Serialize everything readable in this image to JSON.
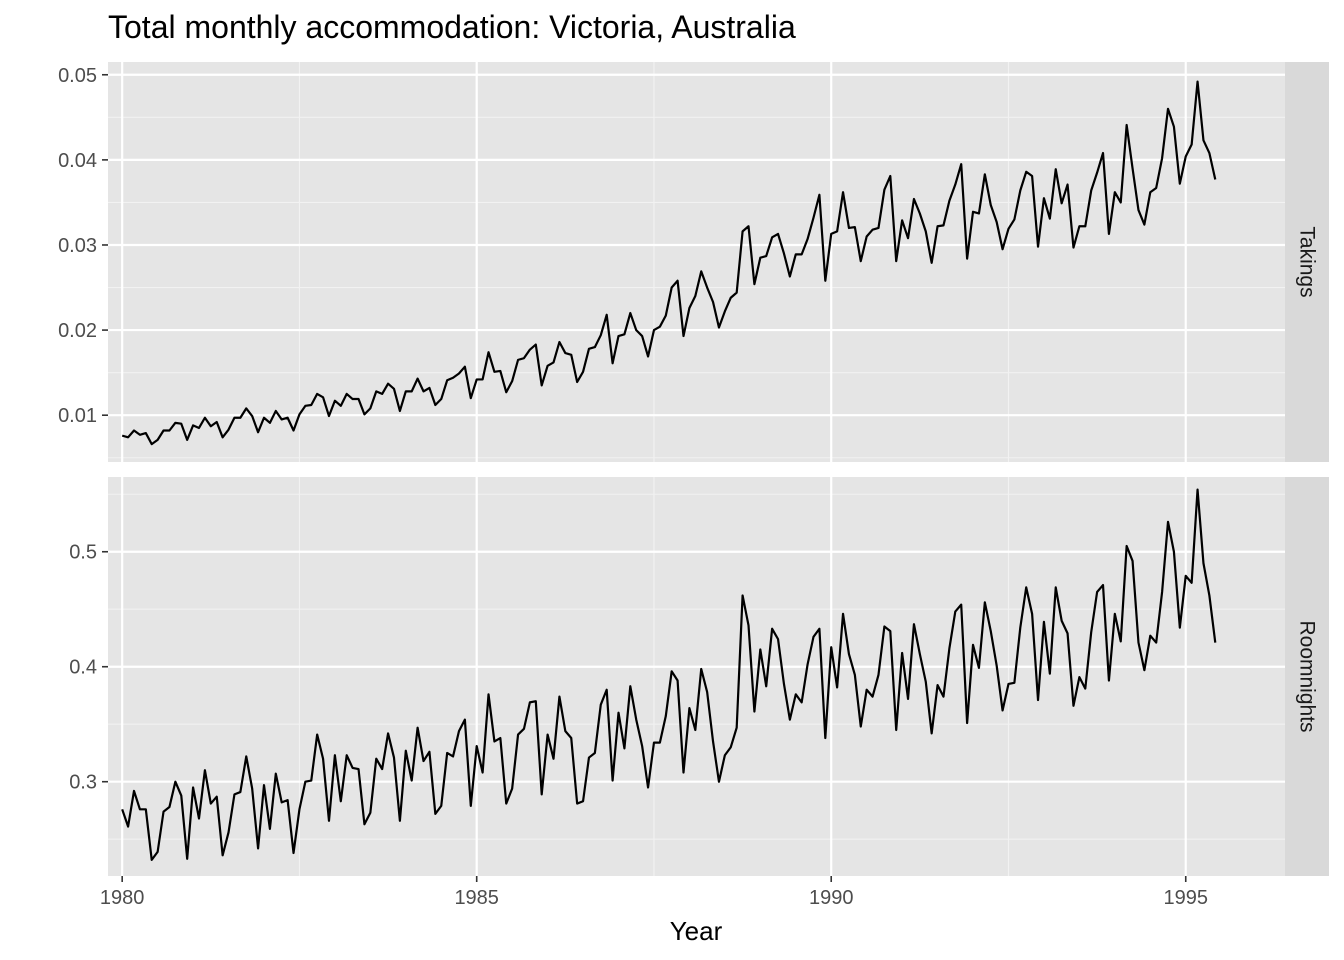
{
  "chart_data": {
    "type": "line",
    "title": "Total monthly accommodation: Victoria, Australia",
    "xlabel": "Year",
    "ylabel": "",
    "x_start": "1980-01",
    "x_frequency": "monthly",
    "x_ticks": [
      1980,
      1985,
      1990,
      1995
    ],
    "xlim": [
      1979.8,
      1996.4
    ],
    "grid": true,
    "legend": "none",
    "line_color": "#000000",
    "panel_background": "#e5e5e5",
    "strip_background": "#d9d9d9",
    "panels": [
      {
        "strip_label": "Takings",
        "ylim": [
          0.0045,
          0.0515
        ],
        "y_ticks": [
          0.01,
          0.02,
          0.03,
          0.04,
          0.05
        ],
        "y_tick_labels": [
          "0.01",
          "0.02",
          "0.03",
          "0.04",
          "0.05"
        ],
        "values": [
          0.0076,
          0.0074,
          0.0082,
          0.0077,
          0.0079,
          0.0066,
          0.0071,
          0.0082,
          0.0082,
          0.0091,
          0.009,
          0.0071,
          0.0088,
          0.0085,
          0.0097,
          0.0087,
          0.0092,
          0.0074,
          0.0083,
          0.0097,
          0.0097,
          0.0108,
          0.0099,
          0.008,
          0.0097,
          0.0091,
          0.0105,
          0.0095,
          0.0097,
          0.0082,
          0.0101,
          0.0111,
          0.0112,
          0.0125,
          0.0121,
          0.0099,
          0.0117,
          0.0111,
          0.0125,
          0.0119,
          0.0119,
          0.0101,
          0.0108,
          0.0128,
          0.0125,
          0.0137,
          0.0131,
          0.0105,
          0.0128,
          0.0128,
          0.0143,
          0.0128,
          0.0132,
          0.0112,
          0.0119,
          0.0141,
          0.0144,
          0.0149,
          0.0157,
          0.012,
          0.0142,
          0.0142,
          0.0174,
          0.0151,
          0.0152,
          0.0127,
          0.014,
          0.0165,
          0.0167,
          0.0177,
          0.0183,
          0.0135,
          0.0158,
          0.0162,
          0.0186,
          0.0173,
          0.0171,
          0.0139,
          0.0151,
          0.0178,
          0.018,
          0.0194,
          0.0218,
          0.0161,
          0.0193,
          0.0195,
          0.022,
          0.02,
          0.0193,
          0.0169,
          0.02,
          0.0204,
          0.0217,
          0.025,
          0.0258,
          0.0193,
          0.0226,
          0.024,
          0.0269,
          0.025,
          0.0233,
          0.0203,
          0.0222,
          0.0238,
          0.0244,
          0.0316,
          0.0322,
          0.0254,
          0.0285,
          0.0287,
          0.0309,
          0.0313,
          0.029,
          0.0263,
          0.0289,
          0.0289,
          0.0307,
          0.0332,
          0.0359,
          0.0258,
          0.0313,
          0.0316,
          0.0362,
          0.032,
          0.0321,
          0.0281,
          0.031,
          0.0318,
          0.032,
          0.0365,
          0.0381,
          0.0281,
          0.0329,
          0.0308,
          0.0354,
          0.0337,
          0.0316,
          0.0279,
          0.0322,
          0.0323,
          0.0352,
          0.0371,
          0.0395,
          0.0284,
          0.0339,
          0.0337,
          0.0383,
          0.0347,
          0.0327,
          0.0295,
          0.0319,
          0.033,
          0.0364,
          0.0386,
          0.0381,
          0.0298,
          0.0355,
          0.0331,
          0.0389,
          0.0349,
          0.0371,
          0.0297,
          0.0322,
          0.0322,
          0.0364,
          0.0385,
          0.0408,
          0.0313,
          0.0362,
          0.035,
          0.0441,
          0.039,
          0.0341,
          0.0324,
          0.0362,
          0.0367,
          0.0402,
          0.046,
          0.0439,
          0.0372,
          0.0404,
          0.0418,
          0.0492,
          0.0423,
          0.0408,
          0.0377
        ]
      },
      {
        "strip_label": "Roomnights",
        "ylim": [
          0.218,
          0.565
        ],
        "y_ticks": [
          0.3,
          0.4,
          0.5
        ],
        "y_tick_labels": [
          "0.3",
          "0.4",
          "0.5"
        ],
        "values": [
          0.276,
          0.261,
          0.292,
          0.276,
          0.276,
          0.232,
          0.239,
          0.274,
          0.278,
          0.3,
          0.288,
          0.233,
          0.295,
          0.268,
          0.31,
          0.281,
          0.287,
          0.236,
          0.256,
          0.289,
          0.291,
          0.322,
          0.294,
          0.242,
          0.297,
          0.259,
          0.307,
          0.282,
          0.284,
          0.238,
          0.276,
          0.3,
          0.301,
          0.341,
          0.32,
          0.266,
          0.323,
          0.283,
          0.323,
          0.312,
          0.311,
          0.263,
          0.273,
          0.32,
          0.311,
          0.342,
          0.321,
          0.266,
          0.327,
          0.301,
          0.347,
          0.318,
          0.326,
          0.272,
          0.279,
          0.325,
          0.322,
          0.344,
          0.354,
          0.279,
          0.331,
          0.308,
          0.376,
          0.335,
          0.338,
          0.281,
          0.294,
          0.341,
          0.346,
          0.369,
          0.37,
          0.289,
          0.341,
          0.32,
          0.374,
          0.344,
          0.338,
          0.281,
          0.283,
          0.321,
          0.325,
          0.367,
          0.38,
          0.301,
          0.36,
          0.329,
          0.383,
          0.354,
          0.331,
          0.295,
          0.334,
          0.334,
          0.357,
          0.396,
          0.388,
          0.308,
          0.364,
          0.345,
          0.398,
          0.378,
          0.335,
          0.3,
          0.323,
          0.33,
          0.347,
          0.462,
          0.436,
          0.361,
          0.415,
          0.383,
          0.433,
          0.424,
          0.385,
          0.354,
          0.376,
          0.369,
          0.402,
          0.426,
          0.433,
          0.338,
          0.417,
          0.382,
          0.446,
          0.411,
          0.393,
          0.348,
          0.38,
          0.374,
          0.393,
          0.435,
          0.431,
          0.345,
          0.412,
          0.372,
          0.437,
          0.411,
          0.387,
          0.342,
          0.384,
          0.374,
          0.416,
          0.448,
          0.454,
          0.351,
          0.419,
          0.399,
          0.456,
          0.431,
          0.401,
          0.362,
          0.385,
          0.386,
          0.434,
          0.469,
          0.446,
          0.371,
          0.439,
          0.394,
          0.469,
          0.44,
          0.429,
          0.366,
          0.391,
          0.381,
          0.43,
          0.465,
          0.471,
          0.388,
          0.446,
          0.422,
          0.505,
          0.492,
          0.421,
          0.397,
          0.427,
          0.421,
          0.465,
          0.526,
          0.5,
          0.434,
          0.479,
          0.473,
          0.554,
          0.49,
          0.462,
          0.421
        ]
      }
    ]
  }
}
